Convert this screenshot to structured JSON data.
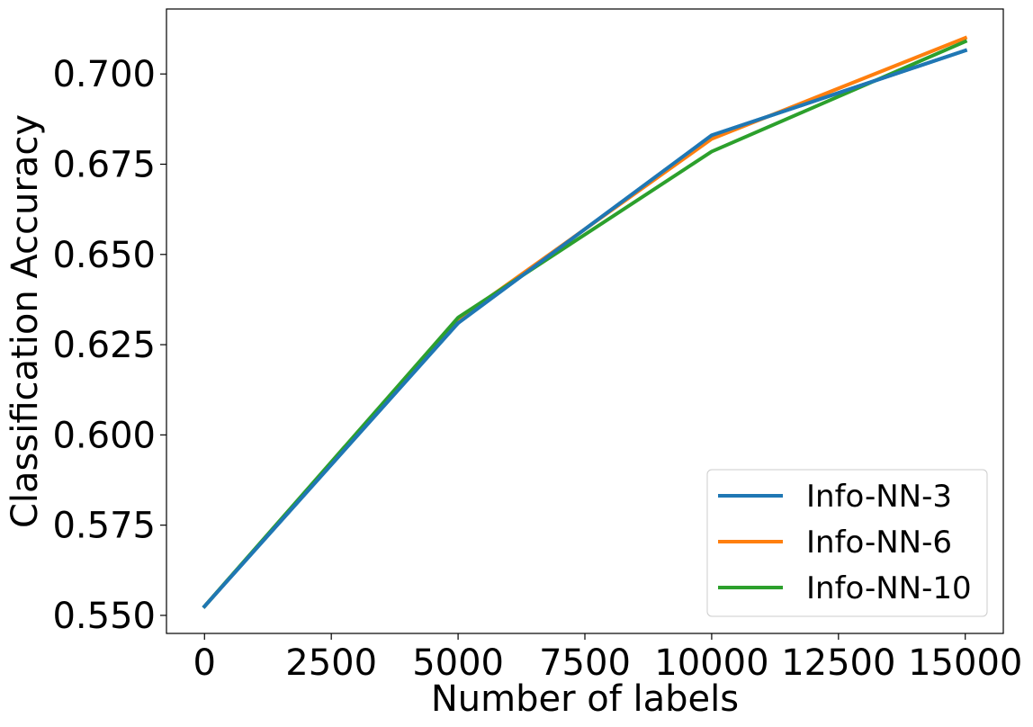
{
  "chart_data": {
    "type": "line",
    "xlabel": "Number of labels",
    "ylabel": "Classification Accuracy",
    "x": [
      0,
      5000,
      10000,
      15000
    ],
    "xlim": [
      -750,
      15750
    ],
    "ylim": [
      0.545,
      0.718
    ],
    "xticks": [
      0,
      2500,
      5000,
      7500,
      10000,
      12500,
      15000
    ],
    "xtick_labels": [
      "0",
      "2500",
      "5000",
      "7500",
      "10000",
      "12500",
      "15000"
    ],
    "yticks": [
      0.55,
      0.575,
      0.6,
      0.625,
      0.65,
      0.675,
      0.7
    ],
    "ytick_labels": [
      "0.550",
      "0.575",
      "0.600",
      "0.625",
      "0.650",
      "0.675",
      "0.700"
    ],
    "grid": false,
    "legend_position": "bottom-right",
    "series": [
      {
        "name": "Info-NN-3",
        "color": "#1f77b4",
        "values": [
          0.5525,
          0.631,
          0.683,
          0.7065
        ]
      },
      {
        "name": "Info-NN-6",
        "color": "#ff7f0e",
        "values": [
          0.5525,
          0.632,
          0.682,
          0.71
        ]
      },
      {
        "name": "Info-NN-10",
        "color": "#2ca02c",
        "values": [
          0.5525,
          0.6325,
          0.6785,
          0.709
        ]
      }
    ]
  }
}
